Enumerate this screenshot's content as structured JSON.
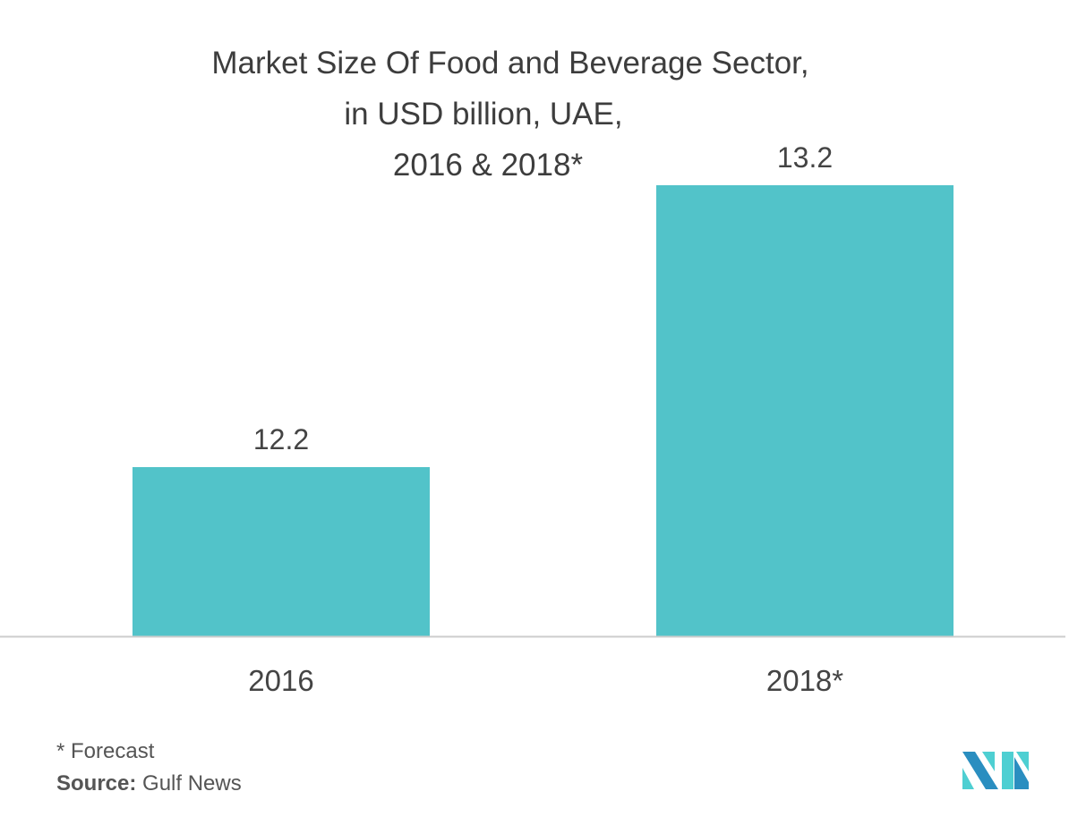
{
  "chart_data": {
    "type": "bar",
    "title_lines": [
      "Market Size Of Food and Beverage Sector,",
      "in USD billion, UAE,",
      "2016 & 2018*"
    ],
    "categories": [
      "2016",
      "2018*"
    ],
    "values": [
      12.2,
      13.2
    ],
    "data_labels": [
      "12.2",
      "13.2"
    ],
    "xlabel": "",
    "ylabel": "",
    "ylim": [
      11.6,
      13.2
    ],
    "grid": false,
    "bar_color": "#52c3c9",
    "axis_color": "#cccccc"
  },
  "footnote": "* Forecast",
  "source": {
    "label": "Source:",
    "value": "Gulf News"
  },
  "logo": {
    "colors": [
      "#2a8ec0",
      "#4ecfd2"
    ]
  }
}
